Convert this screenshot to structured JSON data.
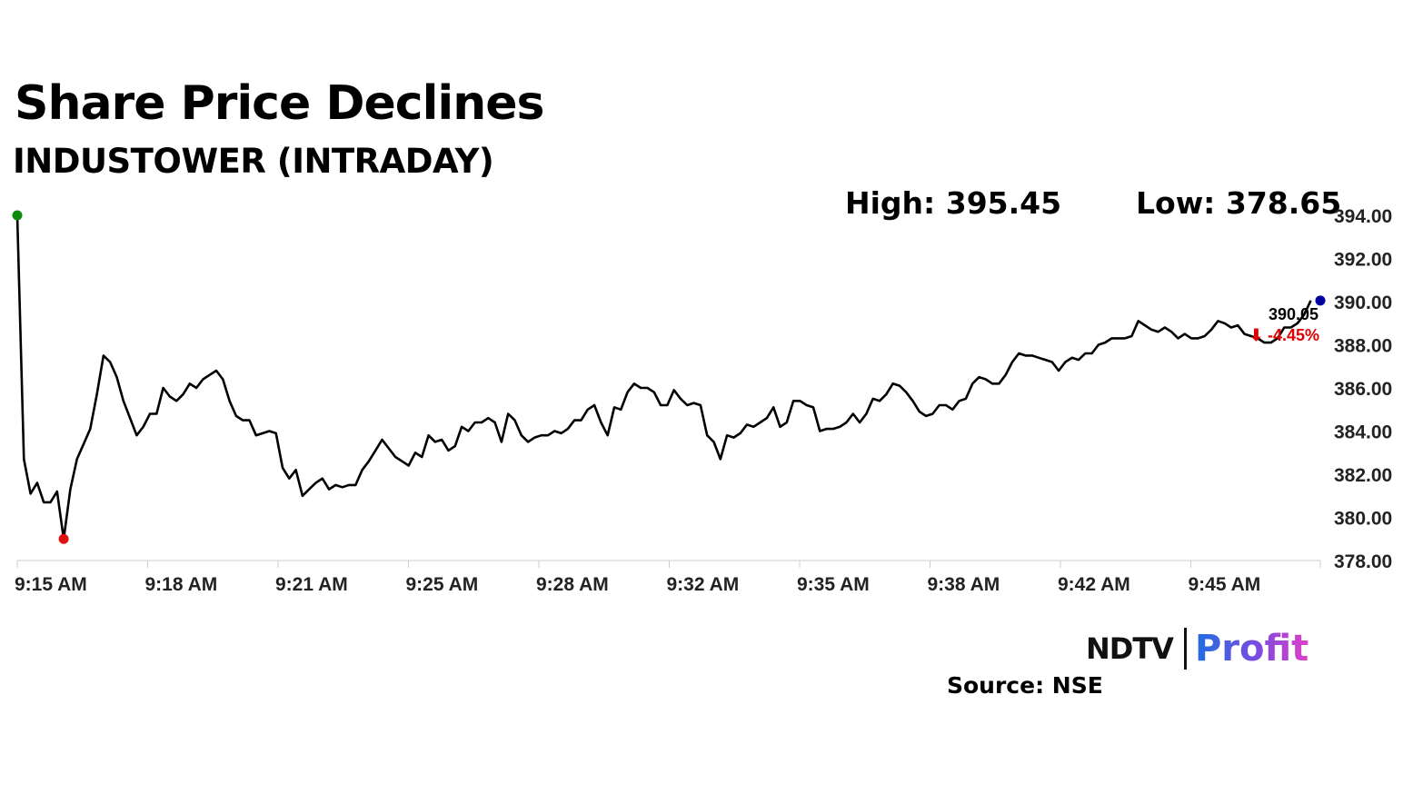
{
  "header": {
    "title": "Share Price Declines",
    "subtitle": "INDUSTOWER (INTRADAY)"
  },
  "stats": {
    "high": "High: 395.45",
    "low": "Low: 378.65"
  },
  "last": {
    "value": "390.05",
    "change": "⬇ -4.45%"
  },
  "brand": {
    "ndtv": "NDTV",
    "profit": "Profit"
  },
  "source": "Source: NSE",
  "colors": {
    "line": "#000000",
    "open_marker": "#0a8a0a",
    "low_marker": "#e01010",
    "last_marker": "#0000a0",
    "change": "#e00000",
    "axis": "#cccccc"
  },
  "chart_data": {
    "type": "line",
    "x_tick_labels": [
      "9:15 AM",
      "9:18 AM",
      "9:21 AM",
      "9:25 AM",
      "9:28 AM",
      "9:32 AM",
      "9:35 AM",
      "9:38 AM",
      "9:42 AM",
      "9:45 AM"
    ],
    "y_tick_labels": [
      "394.00",
      "392.00",
      "390.00",
      "388.00",
      "386.00",
      "384.00",
      "382.00",
      "380.00",
      "378.00"
    ],
    "ylim": [
      378,
      394
    ],
    "grid": false,
    "series": [
      {
        "values": [
          394.0,
          382.7,
          381.1,
          381.6,
          380.7,
          380.7,
          381.2,
          379.0,
          381.3,
          382.7,
          383.4,
          384.1,
          385.7,
          387.5,
          387.2,
          386.5,
          385.4,
          384.6,
          383.8,
          384.2,
          384.8,
          384.8,
          386.0,
          385.6,
          385.4,
          385.7,
          386.2,
          386.0,
          386.4,
          386.6,
          386.8,
          386.4,
          385.4,
          384.7,
          384.5,
          384.5,
          383.8,
          383.9,
          384.0,
          383.9,
          382.3,
          381.8,
          382.2,
          381.0,
          381.3,
          381.6,
          381.8,
          381.3,
          381.5,
          381.4,
          381.5,
          381.5,
          382.2,
          382.6,
          383.1,
          383.6,
          383.2,
          382.8,
          382.6,
          382.4,
          383.0,
          382.8,
          383.8,
          383.5,
          383.6,
          383.1,
          383.3,
          384.2,
          384.0,
          384.4,
          384.4,
          384.6,
          384.4,
          383.5,
          384.8,
          384.5,
          383.8,
          383.5,
          383.7,
          383.8,
          383.8,
          384.0,
          383.9,
          384.1,
          384.5,
          384.5,
          385.0,
          385.2,
          384.4,
          383.8,
          385.1,
          385.0,
          385.8,
          386.2,
          386.0,
          386.0,
          385.8,
          385.2,
          385.2,
          385.9,
          385.5,
          385.2,
          385.3,
          385.2,
          383.8,
          383.5,
          382.7,
          383.8,
          383.7,
          383.9,
          384.3,
          384.2,
          384.4,
          384.6,
          385.1,
          384.2,
          384.4,
          385.4,
          385.4,
          385.2,
          385.1,
          384.0,
          384.1,
          384.1,
          384.2,
          384.4,
          384.8,
          384.4,
          384.8,
          385.5,
          385.4,
          385.7,
          386.2,
          386.1,
          385.8,
          385.4,
          384.9,
          384.7,
          384.8,
          385.2,
          385.2,
          385.0,
          385.4,
          385.5,
          386.2,
          386.5,
          386.4,
          386.2,
          386.2,
          386.6,
          387.2,
          387.6,
          387.5,
          387.5,
          387.4,
          387.3,
          387.2,
          386.8,
          387.2,
          387.4,
          387.3,
          387.6,
          387.6,
          388.0,
          388.1,
          388.3,
          388.3,
          388.3,
          388.4,
          389.1,
          388.9,
          388.7,
          388.6,
          388.8,
          388.6,
          388.3,
          388.5,
          388.3,
          388.3,
          388.4,
          388.7,
          389.1,
          389.0,
          388.8,
          388.9,
          388.5,
          388.4,
          388.3,
          388.1,
          388.1,
          388.3,
          388.8,
          388.8,
          389.0,
          389.4,
          390.05
        ],
        "markers": [
          {
            "label": "open",
            "index": 0,
            "value": 394.0
          },
          {
            "label": "low",
            "index": 7,
            "value": 379.0
          },
          {
            "label": "last",
            "index": 195,
            "value": 390.05
          }
        ]
      }
    ]
  }
}
